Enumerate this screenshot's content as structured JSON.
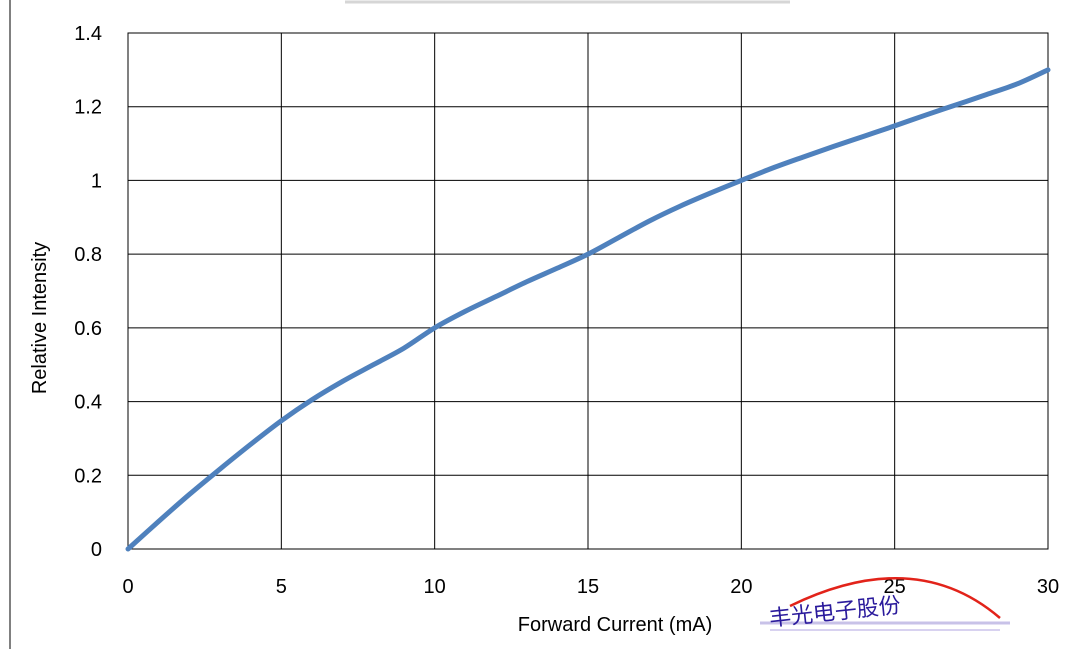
{
  "chart_data": {
    "type": "line",
    "title": "",
    "xlabel": "Forward Current (mA)",
    "ylabel": "Relative Intensity",
    "xlim": [
      0,
      30
    ],
    "ylim": [
      0,
      1.4
    ],
    "x_ticks": [
      "0",
      "5",
      "10",
      "15",
      "20",
      "25",
      "30"
    ],
    "y_ticks": [
      "0",
      "0.2",
      "0.4",
      "0.6",
      "0.8",
      "1",
      "1.2",
      "1.4"
    ],
    "grid": true,
    "legend": "none",
    "series": [
      {
        "color": "#4f81bd",
        "x": [
          0,
          1,
          2,
          3,
          4,
          5,
          6,
          7,
          8,
          9,
          10,
          11,
          12,
          13,
          14,
          15,
          16,
          17,
          18,
          19,
          20,
          21,
          22,
          23,
          24,
          25,
          26,
          27,
          28,
          29,
          30
        ],
        "y": [
          0,
          0.075,
          0.148,
          0.217,
          0.284,
          0.348,
          0.405,
          0.455,
          0.5,
          0.545,
          0.6,
          0.645,
          0.685,
          0.725,
          0.762,
          0.8,
          0.845,
          0.89,
          0.93,
          0.966,
          1.0,
          1.033,
          1.063,
          1.092,
          1.12,
          1.148,
          1.177,
          1.205,
          1.233,
          1.262,
          1.3
        ]
      }
    ]
  },
  "stamp": {
    "text": "丰光电子股份"
  }
}
